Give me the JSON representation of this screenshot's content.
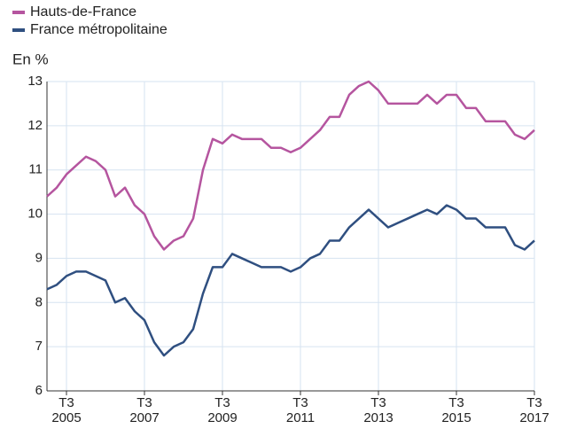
{
  "chart_data": {
    "type": "line",
    "y_axis_label": "En %",
    "categories": [
      null,
      null,
      "T3 2005",
      null,
      null,
      null,
      null,
      null,
      null,
      null,
      "T3 2007",
      null,
      null,
      null,
      null,
      null,
      null,
      null,
      "T3 2009",
      null,
      null,
      null,
      null,
      null,
      null,
      null,
      "T3 2011",
      null,
      null,
      null,
      null,
      null,
      null,
      null,
      "T3 2013",
      null,
      null,
      null,
      null,
      null,
      null,
      null,
      "T3 2015",
      null,
      null,
      null,
      null,
      null,
      null,
      null,
      "T3 2017"
    ],
    "series": [
      {
        "name": "Hauts-de-France",
        "color": "#b5559f",
        "values": [
          10.4,
          10.6,
          10.9,
          11.1,
          11.3,
          11.2,
          11.0,
          10.4,
          10.6,
          10.2,
          10.0,
          9.5,
          9.2,
          9.4,
          9.5,
          9.9,
          11.0,
          11.7,
          11.6,
          11.8,
          11.7,
          11.7,
          11.7,
          11.5,
          11.5,
          11.4,
          11.5,
          11.7,
          11.9,
          12.2,
          12.2,
          12.7,
          12.9,
          13.0,
          12.8,
          12.5,
          12.5,
          12.5,
          12.5,
          12.7,
          12.5,
          12.7,
          12.7,
          12.4,
          12.4,
          12.1,
          12.1,
          12.1,
          11.8,
          11.7,
          11.9
        ]
      },
      {
        "name": "France métropolitaine",
        "color": "#2f4f80",
        "values": [
          8.3,
          8.4,
          8.6,
          8.7,
          8.7,
          8.6,
          8.5,
          8.0,
          8.1,
          7.8,
          7.6,
          7.1,
          6.8,
          7.0,
          7.1,
          7.4,
          8.2,
          8.8,
          8.8,
          9.1,
          9.0,
          8.9,
          8.8,
          8.8,
          8.8,
          8.7,
          8.8,
          9.0,
          9.1,
          9.4,
          9.4,
          9.7,
          9.9,
          10.1,
          9.9,
          9.7,
          9.8,
          9.9,
          10.0,
          10.1,
          10.0,
          10.2,
          10.1,
          9.9,
          9.9,
          9.7,
          9.7,
          9.7,
          9.3,
          9.2,
          9.4
        ]
      }
    ],
    "ylim": [
      6,
      13
    ],
    "yticks": [
      6,
      7,
      8,
      9,
      10,
      11,
      12,
      13
    ],
    "grid": true
  }
}
